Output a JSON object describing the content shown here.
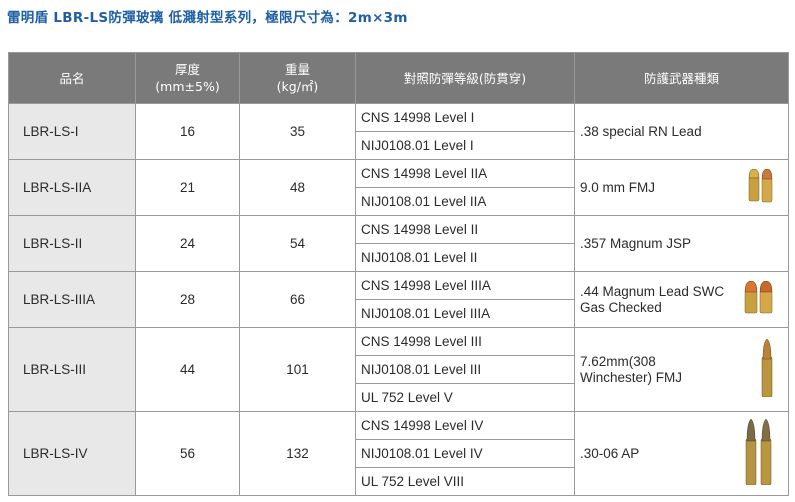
{
  "title": "雷明盾 LBR-LS防彈玻璃 低濺射型系列，極限尺寸為：2m×3m",
  "headers": {
    "name": "品名",
    "thickness_l1": "厚度",
    "thickness_l2": "(mm±5%)",
    "weight_l1": "重量",
    "weight_l2": "(kg/㎡)",
    "standard": "對照防彈等級(防貫穿)",
    "weapon": "防護武器種類"
  },
  "rows": [
    {
      "name": "LBR-LS-I",
      "thickness": "16",
      "weight": "35",
      "levels": [
        "CNS 14998 Level I",
        "NIJ0108.01 Level I"
      ],
      "weapon": ".38 special RN Lead",
      "icon": "none"
    },
    {
      "name": "LBR-LS-IIA",
      "thickness": "21",
      "weight": "48",
      "levels": [
        "CNS 14998 Level IIA",
        "NIJ0108.01 Level IIA"
      ],
      "weapon": "9.0 mm FMJ",
      "icon": "bullet-9mm-icon"
    },
    {
      "name": "LBR-LS-II",
      "thickness": "24",
      "weight": "54",
      "levels": [
        "CNS 14998 Level II",
        "NIJ0108.01 Level II"
      ],
      "weapon": ".357 Magnum JSP",
      "icon": "none"
    },
    {
      "name": "LBR-LS-IIIA",
      "thickness": "28",
      "weight": "66",
      "levels": [
        "CNS 14998 Level IIIA",
        "NIJ0108.01 Level IIIA"
      ],
      "weapon": ".44 Magnum Lead SWC Gas Checked",
      "icon": "bullet-44-magnum-icon"
    },
    {
      "name": "LBR-LS-III",
      "thickness": "44",
      "weight": "101",
      "levels": [
        "CNS 14998 Level III",
        "NIJ0108.01 Level III",
        "UL 752 Level V"
      ],
      "weapon": "7.62mm(308 Winchester) FMJ",
      "icon": "rifle-cartridge-icon"
    },
    {
      "name": "LBR-LS-IV",
      "thickness": "56",
      "weight": "132",
      "levels": [
        "CNS 14998 Level IV",
        "NIJ0108.01 Level IV",
        "UL 752 Level VIII"
      ],
      "weapon": ".30-06 AP",
      "icon": "rifle-cartridges-pair-icon"
    }
  ],
  "colors": {
    "title": "#1f5fa6",
    "header_bg": "#7a7a7a",
    "name_bg": "#e8e8e8",
    "border": "#9a9a9a"
  }
}
